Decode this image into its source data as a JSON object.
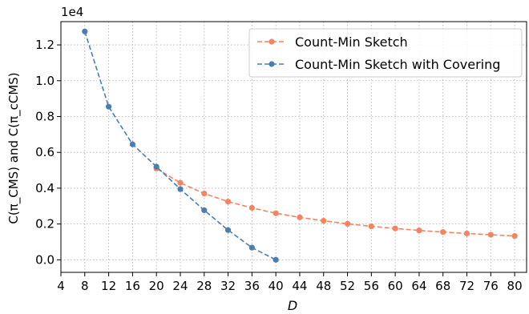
{
  "chart_data": {
    "type": "line",
    "title": "",
    "xlabel": "D",
    "ylabel": "C(π_CMS) and C(π_cCMS)",
    "y_multiplier": "1e4",
    "xlim": [
      4,
      82
    ],
    "ylim": [
      -0.07,
      1.33
    ],
    "xticks": [
      4,
      8,
      12,
      16,
      20,
      24,
      28,
      32,
      36,
      40,
      44,
      48,
      52,
      56,
      60,
      64,
      68,
      72,
      76,
      80
    ],
    "yticks": [
      0.0,
      0.2,
      0.4,
      0.6,
      0.8,
      1.0,
      1.2
    ],
    "grid": true,
    "legend_position": "top-right",
    "series": [
      {
        "name": "Count-Min Sketch",
        "color": "#f4845f",
        "x": [
          20,
          24,
          28,
          32,
          36,
          40,
          44,
          48,
          52,
          56,
          60,
          64,
          68,
          72,
          76,
          80
        ],
        "y": [
          0.51,
          0.43,
          0.37,
          0.325,
          0.29,
          0.26,
          0.237,
          0.218,
          0.201,
          0.187,
          0.175,
          0.164,
          0.155,
          0.147,
          0.14,
          0.133
        ]
      },
      {
        "name": "Count-Min Sketch with Covering",
        "color": "#4a7eb0",
        "x": [
          8,
          12,
          16,
          20,
          24,
          28,
          32,
          36,
          40
        ],
        "y": [
          1.275,
          0.855,
          0.645,
          0.52,
          0.395,
          0.277,
          0.166,
          0.068,
          0.0
        ]
      }
    ]
  }
}
